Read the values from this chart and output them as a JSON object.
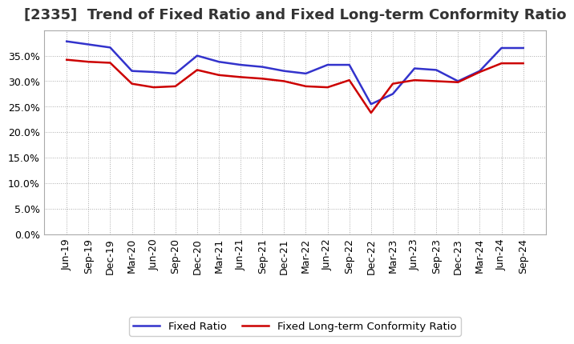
{
  "title": "[2335]  Trend of Fixed Ratio and Fixed Long-term Conformity Ratio",
  "x_labels": [
    "Jun-19",
    "Sep-19",
    "Dec-19",
    "Mar-20",
    "Jun-20",
    "Sep-20",
    "Dec-20",
    "Mar-21",
    "Jun-21",
    "Sep-21",
    "Dec-21",
    "Mar-22",
    "Jun-22",
    "Sep-22",
    "Dec-22",
    "Mar-23",
    "Jun-23",
    "Sep-23",
    "Dec-23",
    "Mar-24",
    "Jun-24",
    "Sep-24"
  ],
  "fixed_ratio": [
    37.8,
    37.2,
    36.6,
    32.0,
    31.8,
    31.5,
    35.0,
    33.8,
    33.2,
    32.8,
    32.0,
    31.5,
    33.2,
    33.2,
    25.5,
    27.5,
    32.5,
    32.2,
    30.0,
    32.0,
    36.5,
    36.5
  ],
  "fixed_lt_ratio": [
    34.2,
    33.8,
    33.6,
    29.5,
    28.8,
    29.0,
    32.2,
    31.2,
    30.8,
    30.5,
    30.0,
    29.0,
    28.8,
    30.2,
    23.8,
    29.5,
    30.2,
    30.0,
    29.8,
    31.8,
    33.5,
    33.5
  ],
  "fixed_ratio_color": "#3333cc",
  "fixed_lt_ratio_color": "#cc0000",
  "background_color": "#ffffff",
  "grid_color": "#aaaaaa",
  "ylim": [
    0,
    40
  ],
  "yticks": [
    0.0,
    5.0,
    10.0,
    15.0,
    20.0,
    25.0,
    30.0,
    35.0
  ],
  "legend_fixed": "Fixed Ratio",
  "legend_lt": "Fixed Long-term Conformity Ratio",
  "title_fontsize": 13,
  "tick_fontsize": 9
}
